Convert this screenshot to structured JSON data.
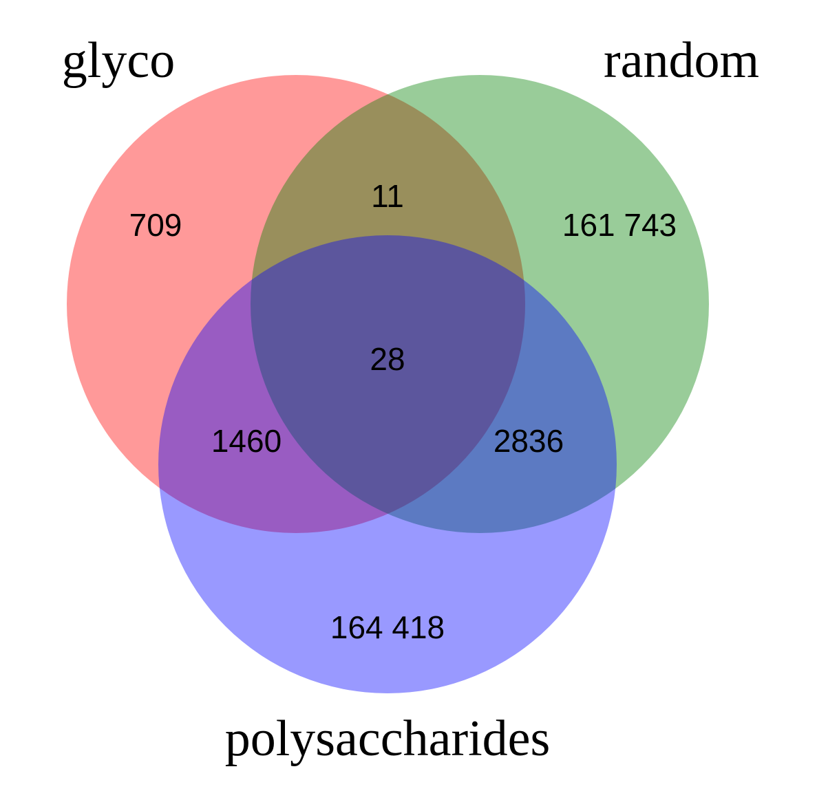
{
  "sets": [
    {
      "id": "glyco",
      "label": "glyco",
      "color": "#ff0000"
    },
    {
      "id": "random",
      "label": "random",
      "color": "#008000"
    },
    {
      "id": "polysaccharides",
      "label": "polysaccharides",
      "color": "#0000ff"
    }
  ],
  "fill_opacity": 0.4,
  "regions": {
    "glyco_only": "709",
    "glyco_random": "11",
    "random_only": "161 743",
    "all_three": "28",
    "glyco_polysaccharides": "1460",
    "random_polysaccharides": "2836",
    "polysaccharides_only": "164 418"
  }
}
